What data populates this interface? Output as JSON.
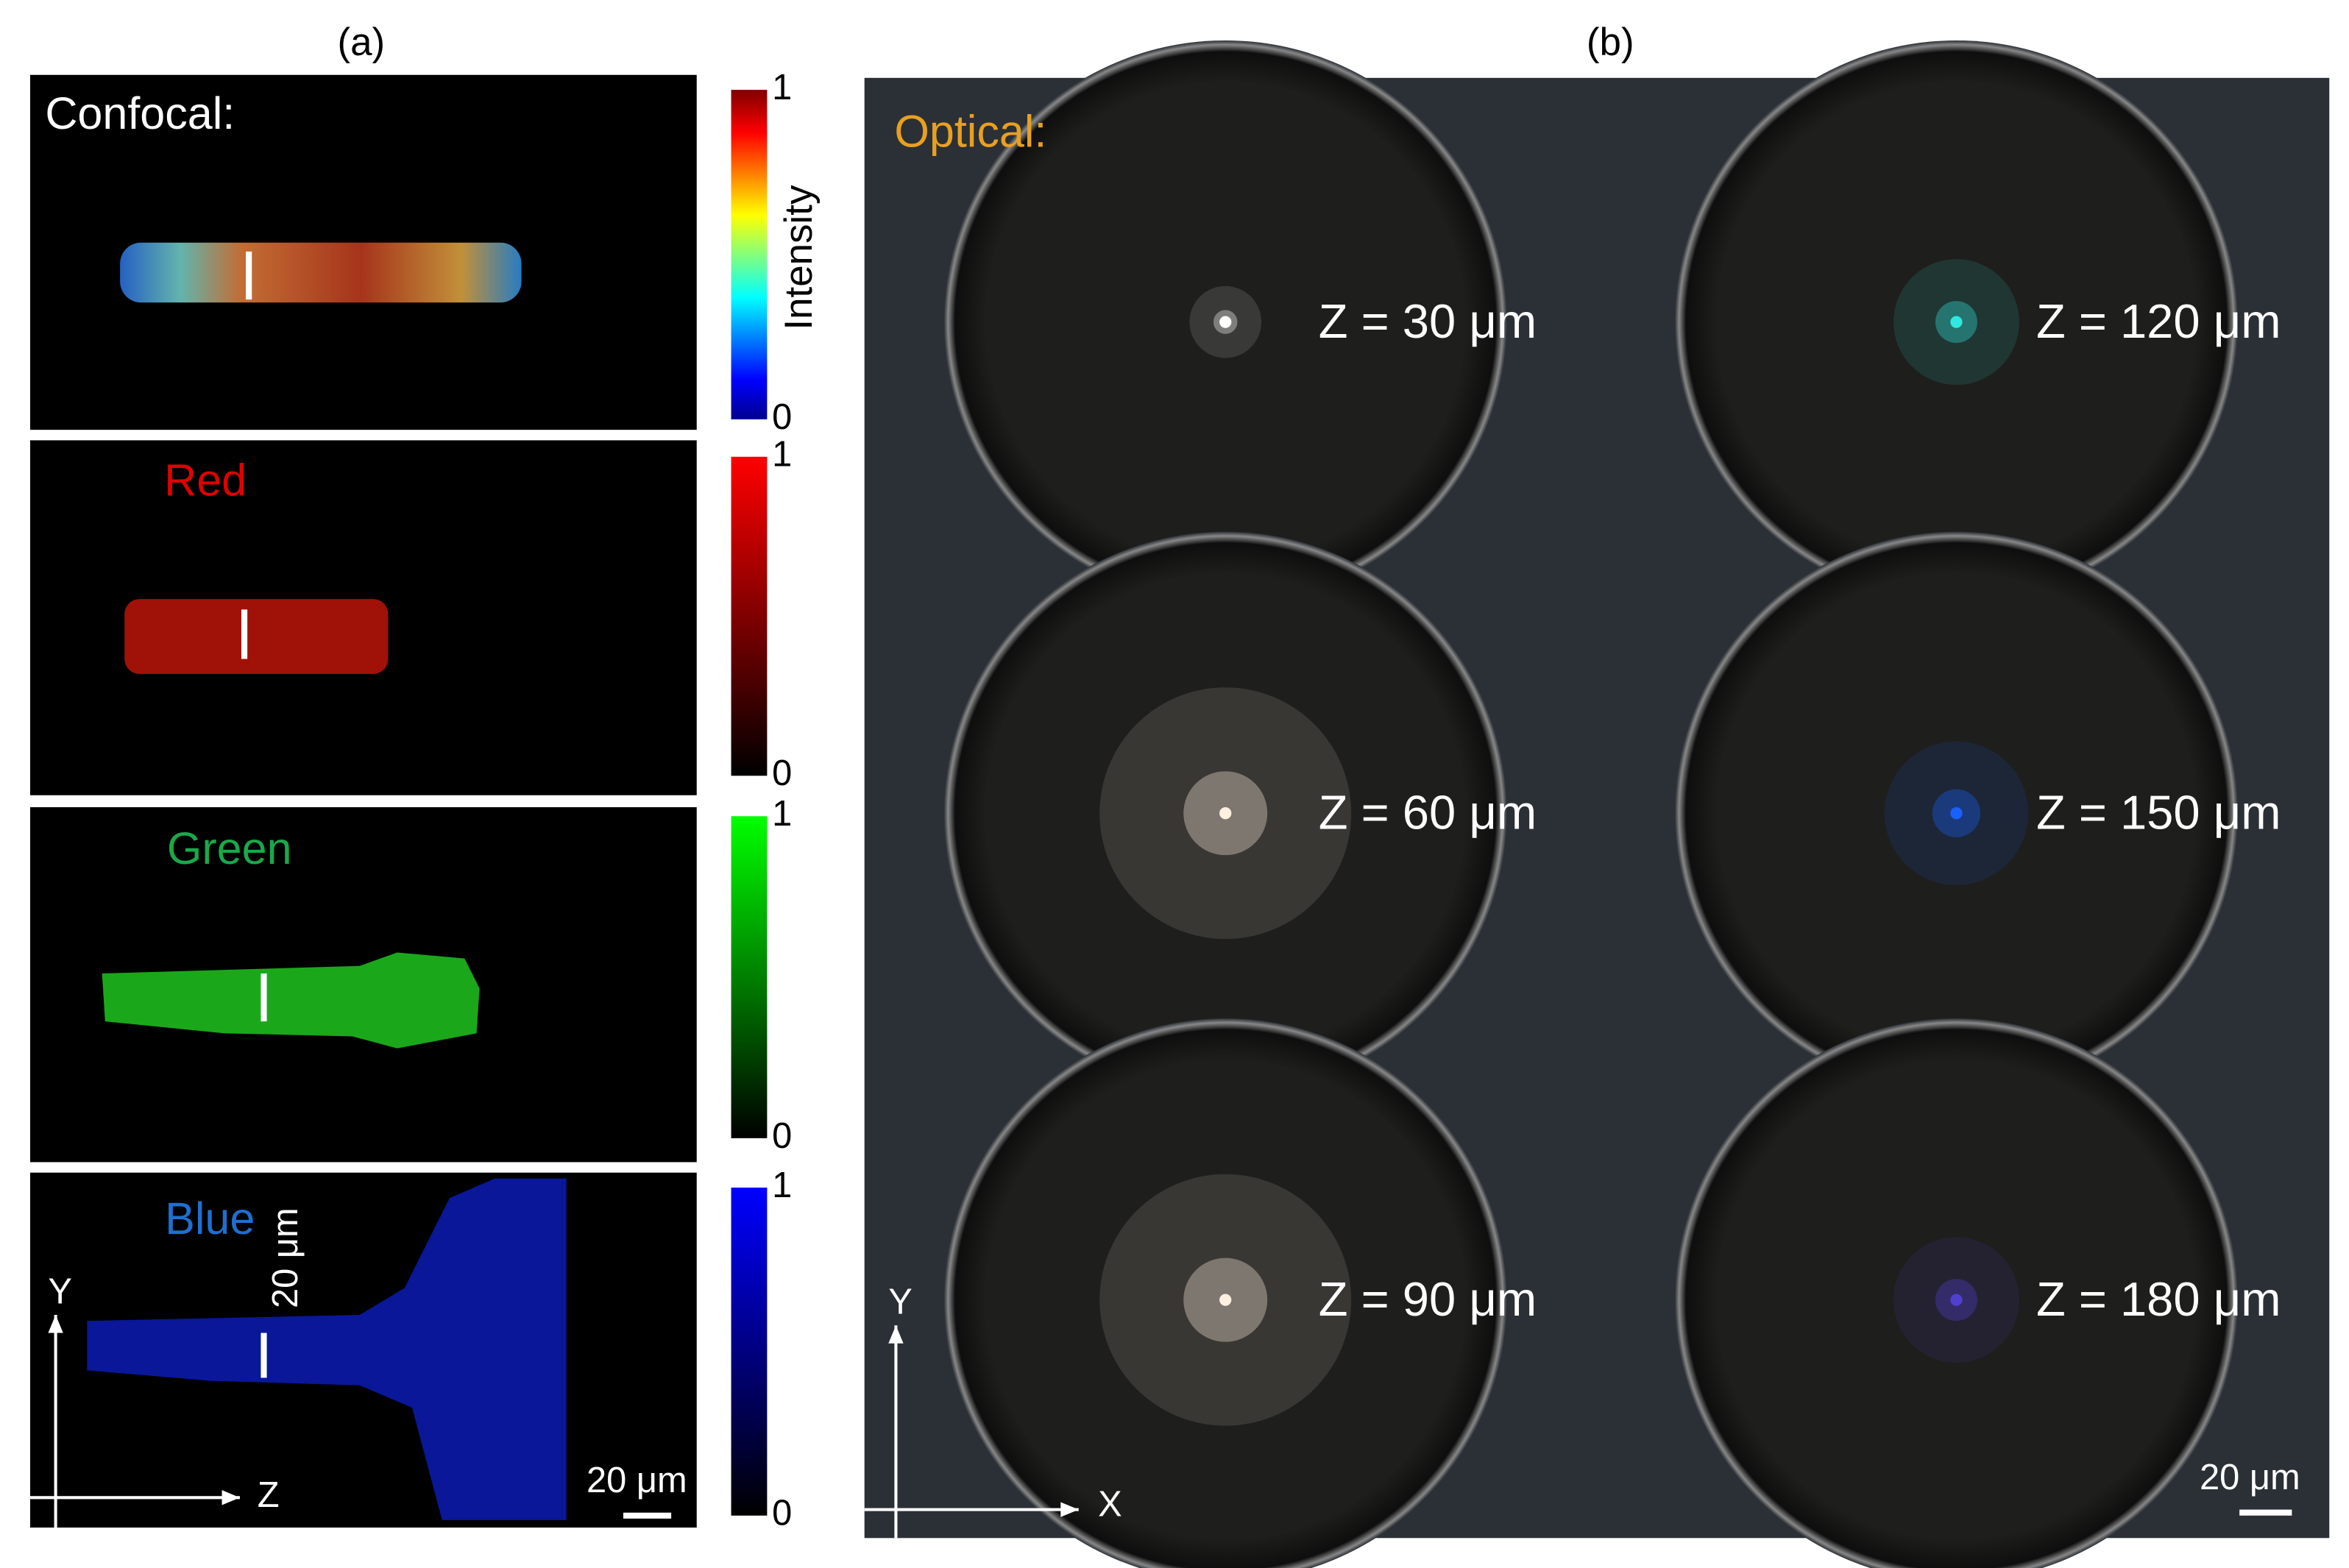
{
  "panel_a": {
    "label": "(a)",
    "rows": [
      {
        "label": "Confocal:",
        "colorbar": {
          "ticks": [
            0,
            1
          ],
          "title": "Intensity"
        }
      },
      {
        "label": "Red",
        "colorbar": {
          "ticks": [
            0,
            1
          ]
        }
      },
      {
        "label": "Green",
        "colorbar": {
          "ticks": [
            0,
            1
          ]
        }
      },
      {
        "label": "Blue",
        "colorbar": {
          "ticks": [
            0,
            1
          ]
        }
      }
    ],
    "vertical_scale": "20 μm",
    "scale_bar": "20 μm",
    "axes": {
      "y": "Y",
      "x": "Z"
    }
  },
  "panel_b": {
    "label": "(b)",
    "title": "Optical:",
    "spots": [
      "Z = 30 μm",
      "Z = 120 μm",
      "Z = 60 μm",
      "Z = 150 μm",
      "Z = 90 μm",
      "Z = 180 μm"
    ],
    "scale_bar": "20 μm",
    "axes": {
      "y": "Y",
      "x": "X"
    }
  }
}
